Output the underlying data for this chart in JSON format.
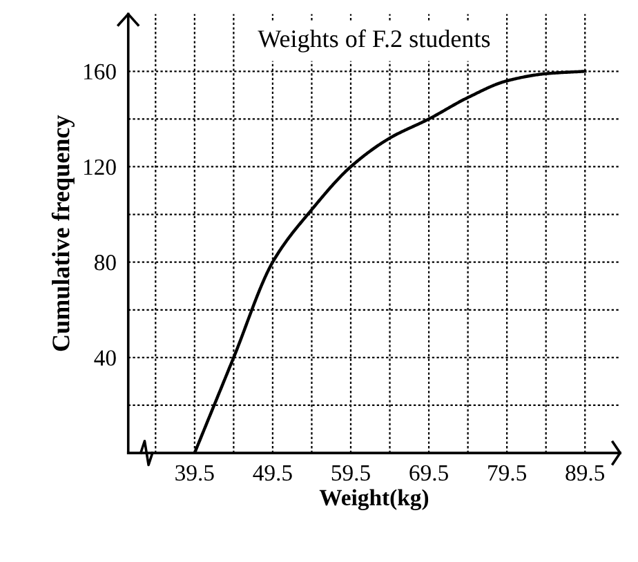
{
  "chart_data": {
    "type": "line",
    "title": "Weights of F.2 students",
    "xlabel": "Weight(kg)",
    "ylabel": "Cumulative frequency",
    "x": [
      39.5,
      44.5,
      49.5,
      54.5,
      59.5,
      64.5,
      69.5,
      74.5,
      79.5,
      84.5,
      89.5
    ],
    "series": [
      {
        "color": "#000000",
        "values": [
          0,
          40,
          80,
          102,
          120,
          132,
          140,
          149,
          156,
          159,
          160
        ]
      }
    ],
    "xlim": [
      31,
      94
    ],
    "ylim": [
      0,
      184
    ],
    "xticks": [
      {
        "value": 34.5,
        "label": null
      },
      39.5,
      {
        "value": 44.5,
        "label": null
      },
      49.5,
      {
        "value": 54.5,
        "label": null
      },
      59.5,
      {
        "value": 64.5,
        "label": null
      },
      69.5,
      {
        "value": 74.5,
        "label": null
      },
      79.5,
      {
        "value": 84.5,
        "label": null
      },
      89.5
    ],
    "yticks": [
      {
        "value": 20,
        "label": null
      },
      40,
      {
        "value": 60,
        "label": null
      },
      80,
      {
        "value": 100,
        "label": null
      },
      120,
      {
        "value": 140,
        "label": null
      },
      160
    ],
    "grid": true,
    "marker": "none",
    "line_style": "solid",
    "legend": false
  }
}
